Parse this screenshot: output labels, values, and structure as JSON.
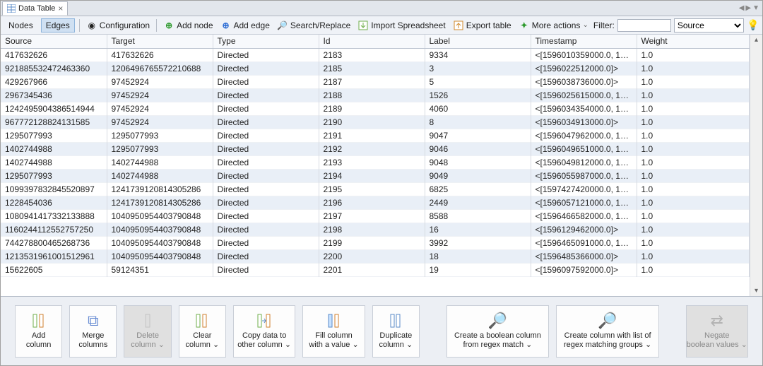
{
  "window": {
    "tab_title": "Data Table"
  },
  "toolbar": {
    "nodes": "Nodes",
    "edges": "Edges",
    "configuration": "Configuration",
    "add_node": "Add node",
    "add_edge": "Add edge",
    "search_replace": "Search/Replace",
    "import_spreadsheet": "Import Spreadsheet",
    "export_table": "Export table",
    "more_actions": "More actions",
    "filter_label": "Filter:",
    "filter_value": "",
    "filter_select": "Source"
  },
  "table": {
    "columns": [
      "Source",
      "Target",
      "Type",
      "Id",
      "Label",
      "Timestamp",
      "Weight"
    ],
    "rows": [
      [
        "417632626",
        "417632626",
        "Directed",
        "2183",
        "9334",
        "<[1596010359000.0, 159...",
        "1.0"
      ],
      [
        "921885532472463360",
        "1206496765572210688",
        "Directed",
        "2185",
        "3",
        "<[1596022512000.0]>",
        "1.0"
      ],
      [
        "429267966",
        "97452924",
        "Directed",
        "2187",
        "5",
        "<[1596038736000.0]>",
        "1.0"
      ],
      [
        "2967345436",
        "97452924",
        "Directed",
        "2188",
        "1526",
        "<[1596025615000.0, 159...",
        "1.0"
      ],
      [
        "1242495904386514944",
        "97452924",
        "Directed",
        "2189",
        "4060",
        "<[1596034354000.0, 159...",
        "1.0"
      ],
      [
        "967772128824131585",
        "97452924",
        "Directed",
        "2190",
        "8",
        "<[1596034913000.0]>",
        "1.0"
      ],
      [
        "1295077993",
        "1295077993",
        "Directed",
        "2191",
        "9047",
        "<[1596047962000.0, 159...",
        "1.0"
      ],
      [
        "1402744988",
        "1295077993",
        "Directed",
        "2192",
        "9046",
        "<[1596049651000.0, 159...",
        "1.0"
      ],
      [
        "1402744988",
        "1402744988",
        "Directed",
        "2193",
        "9048",
        "<[1596049812000.0, 159...",
        "1.0"
      ],
      [
        "1295077993",
        "1402744988",
        "Directed",
        "2194",
        "9049",
        "<[1596055987000.0, 159...",
        "1.0"
      ],
      [
        "1099397832845520897",
        "1241739120814305286",
        "Directed",
        "2195",
        "6825",
        "<[1597427420000.0, 159...",
        "1.0"
      ],
      [
        "1228454036",
        "1241739120814305286",
        "Directed",
        "2196",
        "2449",
        "<[1596057121000.0, 159...",
        "1.0"
      ],
      [
        "1080941417332133888",
        "1040950954403790848",
        "Directed",
        "2197",
        "8588",
        "<[1596466582000.0, 159...",
        "1.0"
      ],
      [
        "1160244112552757250",
        "1040950954403790848",
        "Directed",
        "2198",
        "16",
        "<[1596129462000.0]>",
        "1.0"
      ],
      [
        "744278800465268736",
        "1040950954403790848",
        "Directed",
        "2199",
        "3992",
        "<[1596465091000.0, 159...",
        "1.0"
      ],
      [
        "1213531961001512961",
        "1040950954403790848",
        "Directed",
        "2200",
        "18",
        "<[1596485366000.0]>",
        "1.0"
      ],
      [
        "15622605",
        "59124351",
        "Directed",
        "2201",
        "19",
        "<[1596097592000.0]>",
        "1.0"
      ]
    ]
  },
  "bottom": {
    "add_column": "Add\ncolumn",
    "merge_columns": "Merge\ncolumns",
    "delete_column": "Delete\ncolumn ⌄",
    "clear_column": "Clear\ncolumn ⌄",
    "copy_data": "Copy data to\nother column ⌄",
    "fill_column": "Fill column\nwith a value ⌄",
    "duplicate_column": "Duplicate\ncolumn ⌄",
    "bool_regex": "Create a boolean column\nfrom regex match ⌄",
    "list_regex": "Create column with list of\nregex matching groups ⌄",
    "negate": "Negate\nboolean values ⌄"
  }
}
